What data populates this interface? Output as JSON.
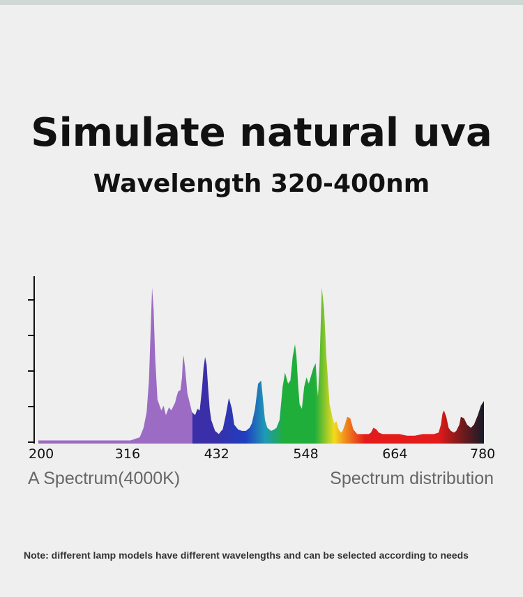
{
  "header": {
    "title": "Simulate natural uva",
    "subtitle": "Wavelength 320-400nm"
  },
  "captions": {
    "left": "A Spectrum(4000K)",
    "right": "Spectrum distribution"
  },
  "note": "Note: different lamp models have different wavelengths and can be selected according to needs",
  "chart_data": {
    "type": "area",
    "title": "",
    "xlabel": "",
    "ylabel": "",
    "x_ticks": [
      200,
      316,
      432,
      548,
      664,
      780
    ],
    "xlim": [
      200,
      780
    ],
    "ylim": [
      0,
      1
    ],
    "grid": false,
    "legend": "none",
    "colors": {
      "uv": "#9c6bc4",
      "violet": "#3a2fa8",
      "blue": "#1f3fc0",
      "cyan": "#1f9ab5",
      "green": "#1fae3a",
      "yellow": "#f2dc1c",
      "orange": "#f08a1c",
      "red": "#e41b1b",
      "deep_red": "#8a1a1a",
      "ir": "#151b28"
    },
    "series": [
      {
        "x": [
          200,
          210,
          300,
          320,
          332,
          337,
          341,
          344,
          346,
          348,
          350,
          352,
          355,
          360,
          363,
          366,
          370,
          373,
          378,
          380,
          382,
          385,
          387,
          388,
          389,
          391,
          394,
          400,
          404,
          407,
          410,
          413,
          415,
          417,
          419,
          421,
          423,
          425,
          430,
          435,
          438,
          440,
          444,
          448,
          452,
          455,
          460,
          465,
          470,
          475,
          478,
          482,
          486,
          490,
          495,
          498,
          503,
          507,
          510,
          514,
          518,
          521,
          525,
          528,
          531,
          534,
          536,
          538,
          540,
          543,
          546,
          549,
          552,
          555,
          558,
          561,
          563,
          564,
          566,
          569,
          572,
          575,
          579,
          583,
          585,
          588,
          590,
          592,
          594,
          596,
          599,
          602,
          606,
          610,
          615,
          620,
          625,
          630,
          633,
          636,
          640,
          643,
          648,
          653,
          660,
          670,
          680,
          690,
          700,
          710,
          715,
          721,
          724,
          726,
          728,
          731,
          734,
          737,
          741,
          744,
          748,
          750,
          754,
          758,
          763,
          767,
          772,
          776,
          780
        ],
        "y": [
          0.02,
          0.02,
          0.02,
          0.02,
          0.04,
          0.1,
          0.2,
          0.4,
          0.7,
          0.99,
          0.85,
          0.55,
          0.28,
          0.21,
          0.24,
          0.18,
          0.23,
          0.21,
          0.26,
          0.3,
          0.33,
          0.34,
          0.42,
          0.52,
          0.56,
          0.48,
          0.32,
          0.2,
          0.18,
          0.22,
          0.21,
          0.35,
          0.48,
          0.55,
          0.5,
          0.35,
          0.22,
          0.15,
          0.08,
          0.06,
          0.08,
          0.09,
          0.18,
          0.29,
          0.22,
          0.12,
          0.09,
          0.08,
          0.08,
          0.1,
          0.13,
          0.22,
          0.38,
          0.4,
          0.15,
          0.1,
          0.08,
          0.09,
          0.1,
          0.15,
          0.36,
          0.45,
          0.38,
          0.4,
          0.55,
          0.63,
          0.55,
          0.38,
          0.25,
          0.22,
          0.36,
          0.42,
          0.38,
          0.43,
          0.48,
          0.51,
          0.35,
          0.3,
          0.5,
          0.99,
          0.85,
          0.55,
          0.25,
          0.16,
          0.13,
          0.14,
          0.1,
          0.08,
          0.07,
          0.08,
          0.12,
          0.17,
          0.16,
          0.09,
          0.06,
          0.06,
          0.06,
          0.06,
          0.07,
          0.1,
          0.09,
          0.07,
          0.06,
          0.06,
          0.06,
          0.06,
          0.05,
          0.05,
          0.06,
          0.06,
          0.06,
          0.07,
          0.12,
          0.19,
          0.21,
          0.17,
          0.1,
          0.08,
          0.07,
          0.08,
          0.12,
          0.17,
          0.16,
          0.12,
          0.1,
          0.12,
          0.18,
          0.24,
          0.27
        ]
      }
    ]
  }
}
